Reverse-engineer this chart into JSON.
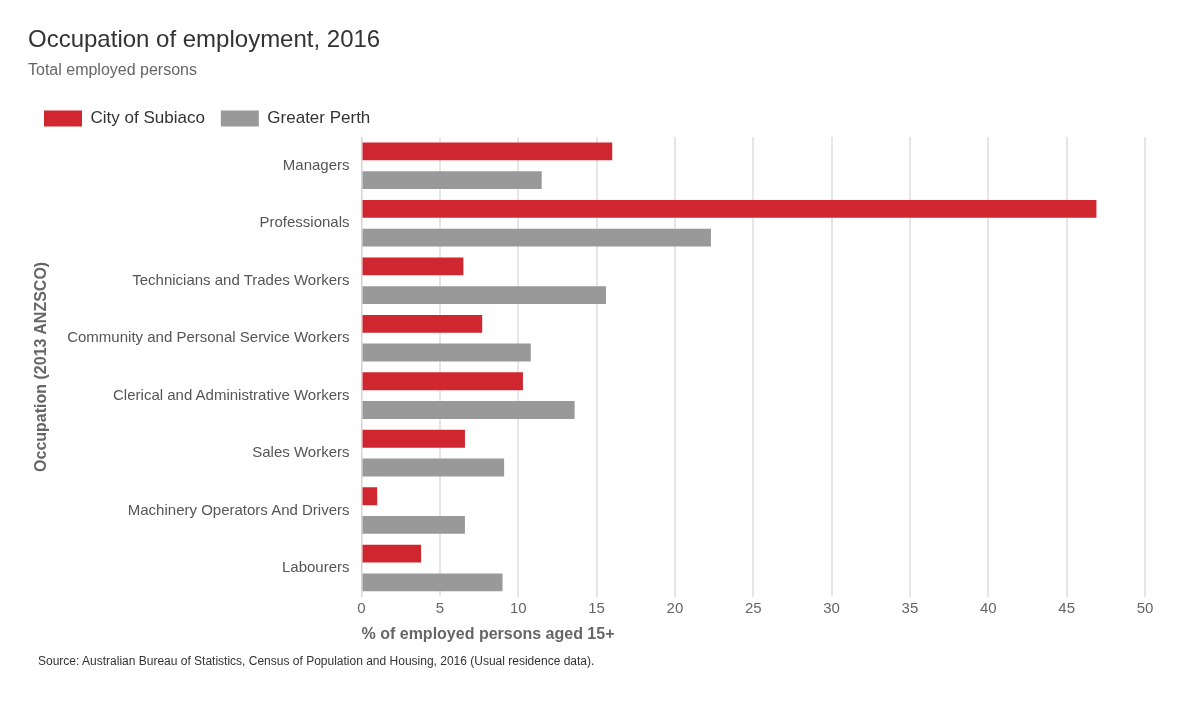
{
  "chart_data": {
    "type": "bar",
    "orientation": "horizontal",
    "title": "Occupation of employment, 2016",
    "subtitle": "Total employed persons",
    "xlabel": "% of employed persons aged 15+",
    "ylabel": "Occupation (2013 ANZSCO)",
    "categories": [
      "Managers",
      "Professionals",
      "Technicians and Trades Workers",
      "Community and Personal Service Workers",
      "Clerical and Administrative Workers",
      "Sales Workers",
      "Machinery Operators And Drivers",
      "Labourers"
    ],
    "series": [
      {
        "name": "City of Subiaco",
        "color": "#d0262f",
        "values": [
          16.0,
          46.9,
          6.5,
          7.7,
          10.3,
          6.6,
          1.0,
          3.8
        ]
      },
      {
        "name": "Greater Perth",
        "color": "#999999",
        "values": [
          11.5,
          22.3,
          15.6,
          10.8,
          13.6,
          9.1,
          6.6,
          9.0
        ]
      }
    ],
    "xlim": [
      0,
      50
    ],
    "xticks": [
      0,
      5,
      10,
      15,
      20,
      25,
      30,
      35,
      40,
      45,
      50
    ],
    "grid": "x",
    "legend": "top left",
    "annotations": [
      "Source: Australian Bureau of Statistics, Census of Population and Housing, 2016 (Usual residence data)."
    ]
  }
}
